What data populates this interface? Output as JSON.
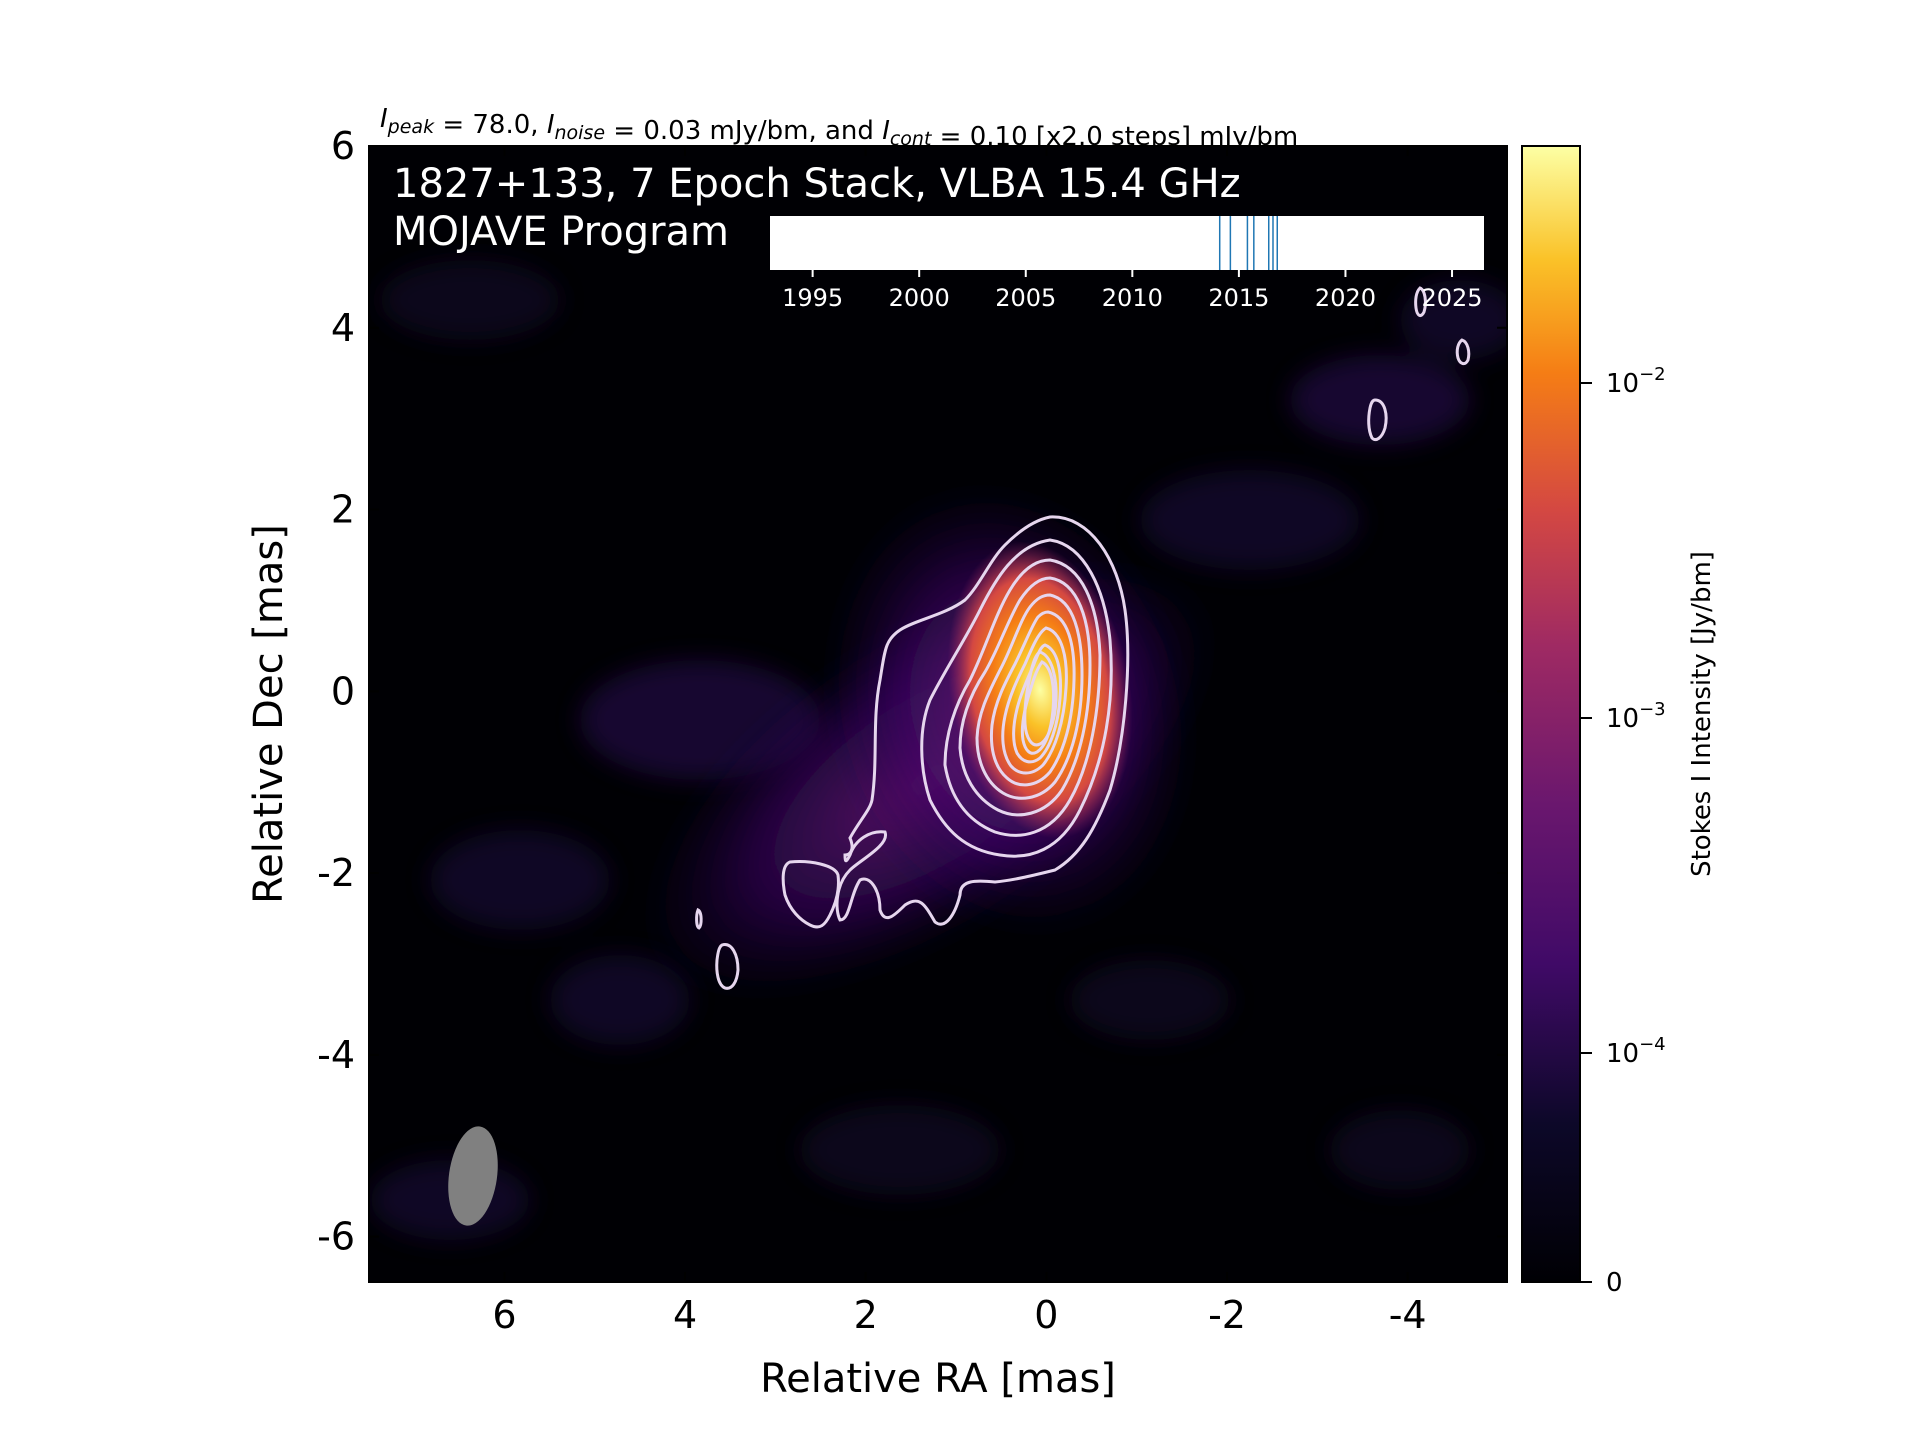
{
  "chart_data": {
    "type": "heatmap",
    "header_parts": [
      {
        "text": "I",
        "italic": true,
        "sub": "peak"
      },
      {
        "text": " = 78.0, "
      },
      {
        "text": "I",
        "italic": true,
        "sub": "noise"
      },
      {
        "text": " = 0.03 mJy/bm, and "
      },
      {
        "text": "I",
        "italic": true,
        "sub": "cont"
      },
      {
        "text": " = 0.10 [x2.0 steps] mJy/bm"
      }
    ],
    "title_line1": "1827+133, 7 Epoch Stack, VLBA 15.4 GHz",
    "title_line2": "MOJAVE Program",
    "xlabel": "Relative RA [mas]",
    "ylabel": "Relative Dec [mas]",
    "xlim": [
      7.5,
      -5.1
    ],
    "ylim": [
      -6.5,
      6.0
    ],
    "xticks": [
      6,
      4,
      2,
      0,
      -2,
      -4
    ],
    "yticks": [
      6,
      4,
      2,
      0,
      -2,
      -4,
      -6
    ],
    "colorbar": {
      "label": "Stokes I Intensity [Jy/bm]",
      "scale": "log",
      "colormap": "inferno",
      "ticks": [
        {
          "value": 0,
          "base": "0",
          "exp": ""
        },
        {
          "value": 0.0001,
          "base": "10",
          "exp": "−4"
        },
        {
          "value": 0.001,
          "base": "10",
          "exp": "−3"
        },
        {
          "value": 0.01,
          "base": "10",
          "exp": "−2"
        }
      ]
    },
    "contour_color": "#e6d6ee",
    "beam_color": "#808080",
    "timeline": {
      "xlim": [
        1993,
        2026.5
      ],
      "ticks": [
        1995,
        2000,
        2005,
        2010,
        2015,
        2020,
        2025
      ],
      "epochs": [
        2014.1,
        2014.6,
        2015.4,
        2015.7,
        2016.4,
        2016.6,
        2016.8
      ],
      "epoch_color": "#1f77b4"
    }
  }
}
